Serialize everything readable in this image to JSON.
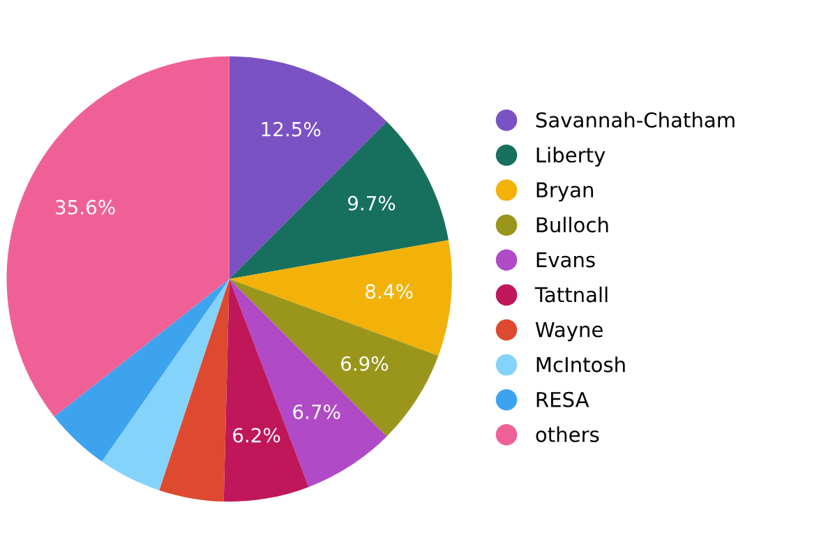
{
  "chart_data": {
    "type": "pie",
    "categories": [
      "Savannah-Chatham",
      "Liberty",
      "Bryan",
      "Bulloch",
      "Evans",
      "Tattnall",
      "Wayne",
      "McIntosh",
      "RESA",
      "others"
    ],
    "values": [
      12.5,
      9.7,
      8.4,
      6.9,
      6.7,
      6.2,
      4.7,
      4.6,
      4.7,
      35.6
    ],
    "value_labels": [
      "12.5%",
      "9.7%",
      "8.4%",
      "6.9%",
      "6.7%",
      "6.2%",
      null,
      null,
      null,
      "35.6%"
    ],
    "colors": [
      "#7b52c4",
      "#17705e",
      "#f2b209",
      "#9a961c",
      "#b04ac6",
      "#c0175a",
      "#dd4a30",
      "#84d3fa",
      "#3ea3ef",
      "#ef6196"
    ],
    "legend": "right"
  }
}
